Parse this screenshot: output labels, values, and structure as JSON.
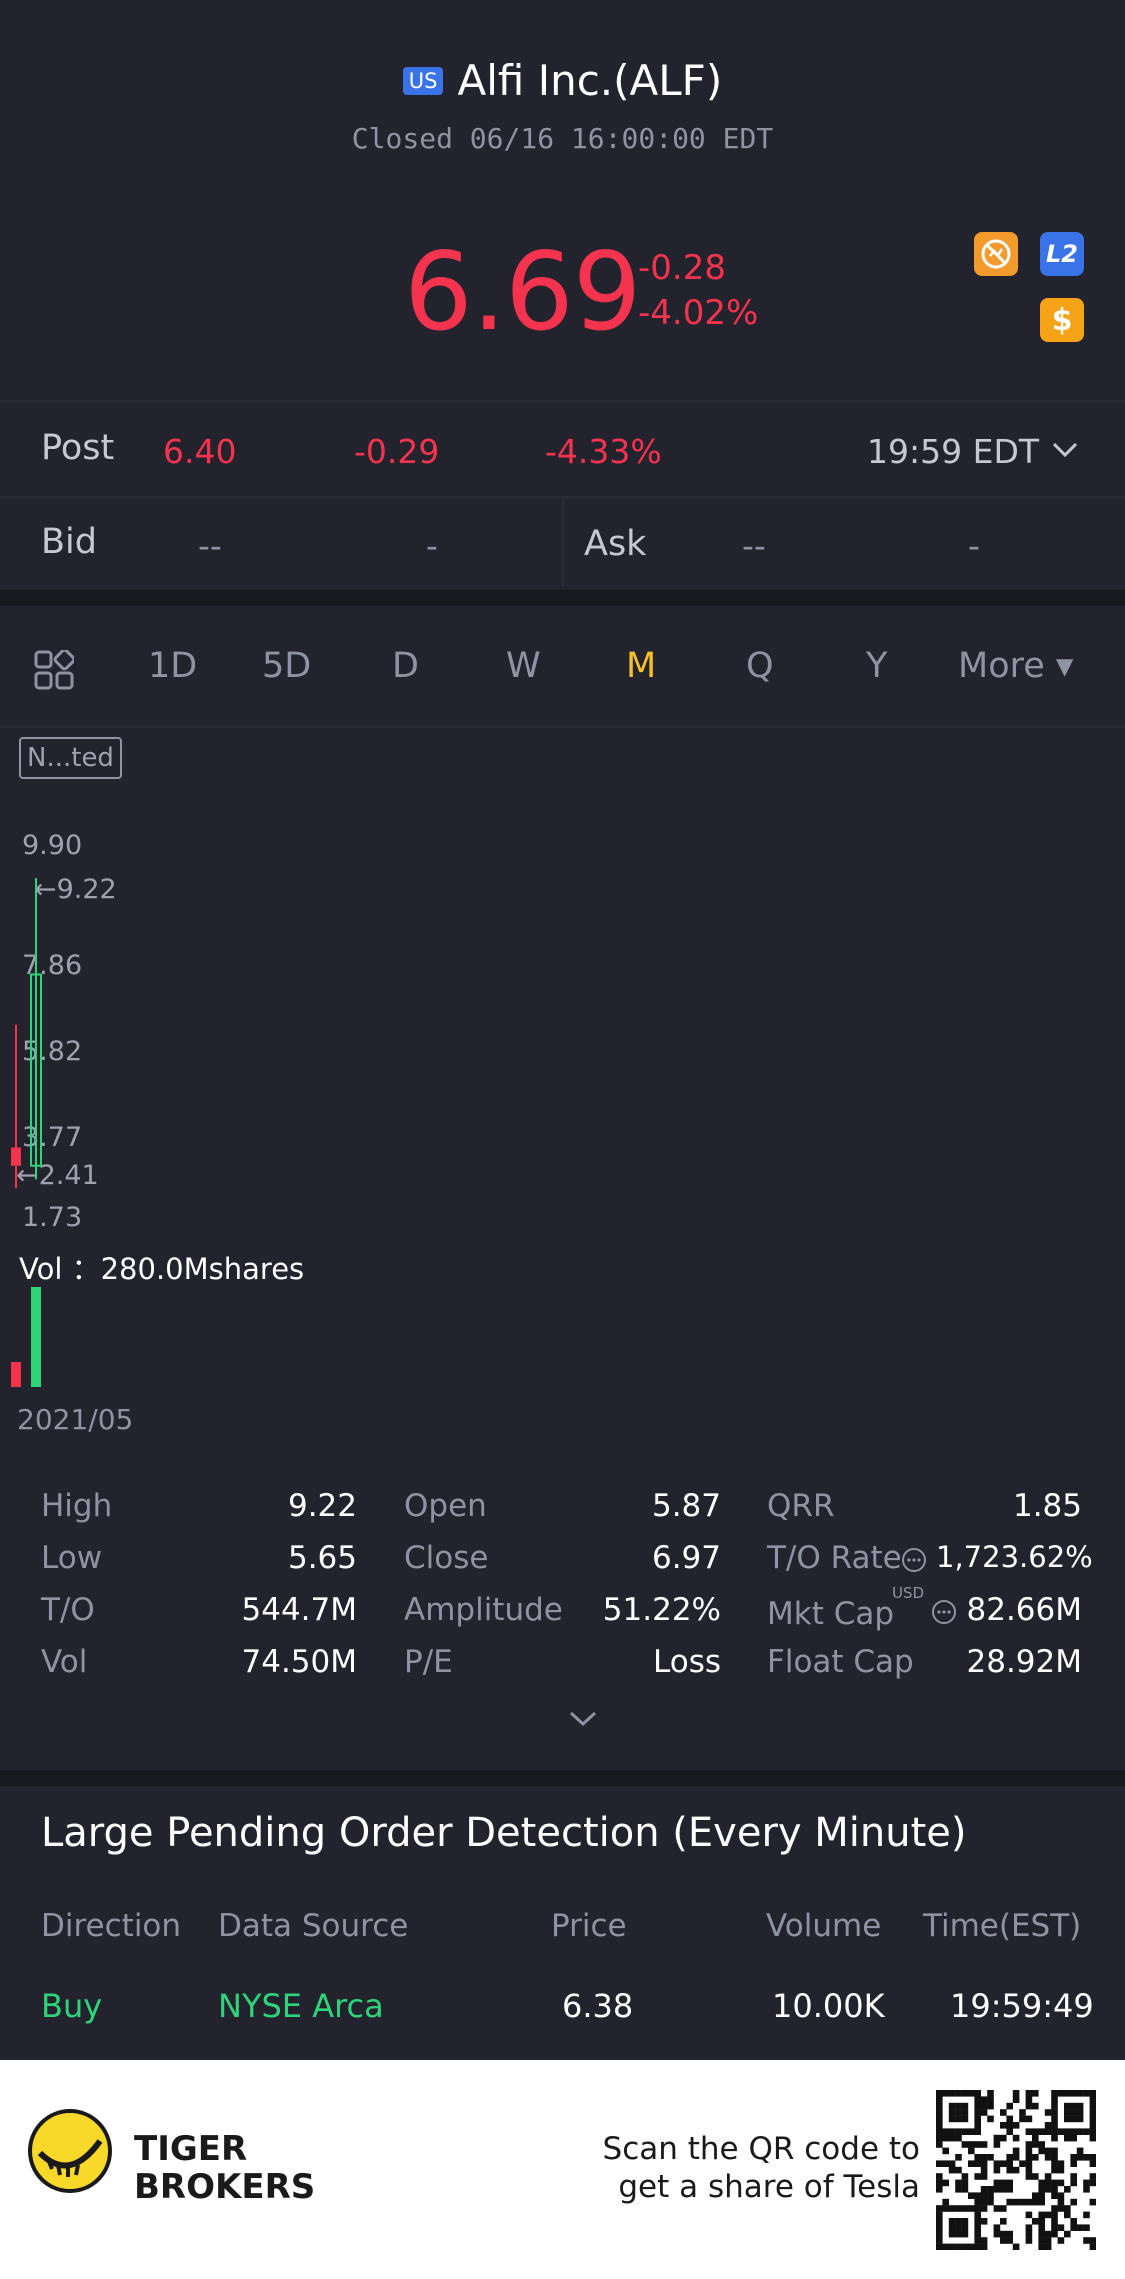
{
  "header": {
    "market_badge": "US",
    "title": "Alfi Inc.(ALF)",
    "status": "Closed 06/16 16:00:00 EDT"
  },
  "quote": {
    "price": "6.69",
    "change": "-0.28",
    "change_pct": "-4.02%",
    "l2_label": "L2",
    "dollar_label": "$",
    "colors": {
      "down": "#f4334e",
      "up": "#2ed47a",
      "accent": "#f6c026"
    }
  },
  "post": {
    "label": "Post",
    "price": "6.40",
    "change": "-0.29",
    "change_pct": "-4.33%",
    "time": "19:59 EDT"
  },
  "bidask": {
    "bid_label": "Bid",
    "bid_price": "--",
    "bid_size": "-",
    "ask_label": "Ask",
    "ask_price": "--",
    "ask_size": "-"
  },
  "tabs": {
    "items": [
      "1D",
      "5D",
      "D",
      "W",
      "M",
      "Q",
      "Y"
    ],
    "active": "M",
    "more": "More ▾"
  },
  "chart": {
    "badge": "N...ted",
    "y_ticks": [
      "9.90",
      "7.86",
      "5.82",
      "3.77",
      "1.73"
    ],
    "high_marker": "←9.22",
    "low_marker": "←2.41",
    "vol_label": "Vol ：280.0Mshares",
    "date_label": "2021/05"
  },
  "chart_data": {
    "type": "candlestick",
    "ylim": [
      1.73,
      9.9
    ],
    "candles": [
      {
        "open": 3.3,
        "high": 6.0,
        "low": 2.41,
        "close": 2.9,
        "color": "red"
      },
      {
        "open": 2.9,
        "high": 9.22,
        "low": 2.6,
        "close": 7.1,
        "color": "green"
      }
    ],
    "volume": [
      {
        "value": 70,
        "color": "red"
      },
      {
        "value": 280,
        "color": "green"
      }
    ],
    "volume_unit": "Mshares",
    "y_ticks": [
      9.9,
      7.86,
      5.82,
      3.77,
      1.73
    ],
    "x_labels": [
      "2021/05"
    ]
  },
  "stats": {
    "col1": [
      {
        "k": "High",
        "v": "9.22"
      },
      {
        "k": "Low",
        "v": "5.65"
      },
      {
        "k": "T/O",
        "v": "544.7M"
      },
      {
        "k": "Vol",
        "v": "74.50M"
      }
    ],
    "col2": [
      {
        "k": "Open",
        "v": "5.87"
      },
      {
        "k": "Close",
        "v": "6.97"
      },
      {
        "k": "Amplitude",
        "v": "51.22%"
      },
      {
        "k": "P/E",
        "v": "Loss"
      }
    ],
    "col3": [
      {
        "k": "QRR",
        "v": "1.85"
      },
      {
        "k": "T/O Rate",
        "v": "1,723.62%"
      },
      {
        "k": "Mkt Cap",
        "v": "82.66M"
      },
      {
        "k": "Float Cap",
        "v": "28.92M"
      }
    ],
    "usd_tag": "USD"
  },
  "large_pending": {
    "title": "Large Pending Order Detection (Every Minute)",
    "headers": [
      "Direction",
      "Data Source",
      "Price",
      "Volume",
      "Time(EST)"
    ],
    "rows": [
      {
        "direction": "Buy",
        "source": "NYSE Arca",
        "price": "6.38",
        "volume": "10.00K",
        "time": "19:59:49"
      }
    ]
  },
  "footer": {
    "brand_line1": "TIGER",
    "brand_line2": "BROKERS",
    "scan_line1": "Scan the QR code to",
    "scan_line2": "get a share of Tesla"
  }
}
